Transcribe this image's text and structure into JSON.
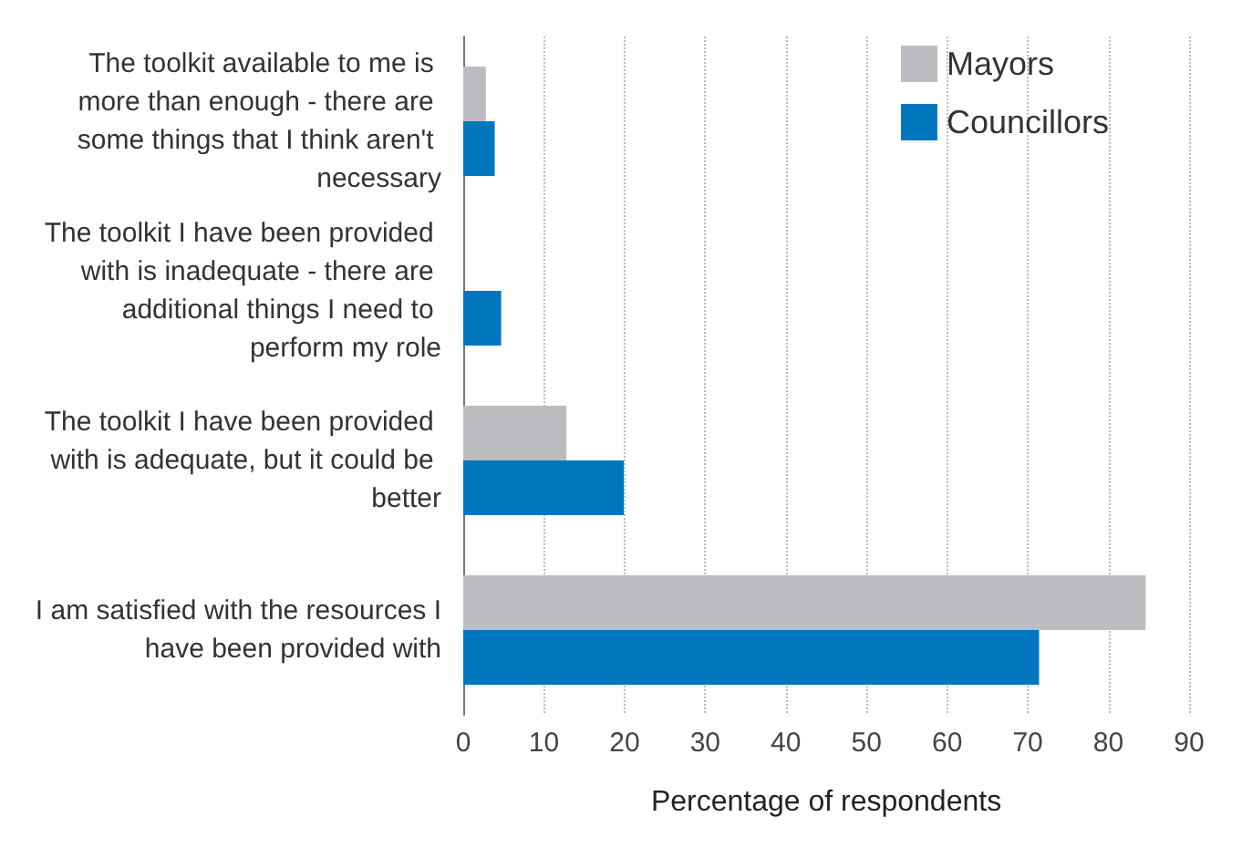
{
  "chart_data": {
    "type": "bar",
    "orientation": "horizontal",
    "xlabel": "Percentage of respondents",
    "categories": [
      "The toolkit available to me is more than enough - there are some things that I think aren't necessary",
      "The toolkit I have been provided with is inadequate - there are additional things I need to perform my role",
      "The toolkit I have been provided with is adequate, but it could be better",
      "I am satisfied with the resources I have been provided with"
    ],
    "series": [
      {
        "name": "Mayors",
        "color": "#bcbdc0",
        "values": [
          2.8,
          0,
          12.8,
          84.6
        ]
      },
      {
        "name": "Councillors",
        "color": "#0076be",
        "values": [
          3.9,
          4.7,
          19.9,
          71.4
        ]
      }
    ],
    "xlim": [
      0,
      90
    ],
    "xticks": [
      0,
      10,
      20,
      30,
      40,
      50,
      60,
      70,
      80,
      90
    ],
    "grid": "x",
    "legend": "top right"
  }
}
